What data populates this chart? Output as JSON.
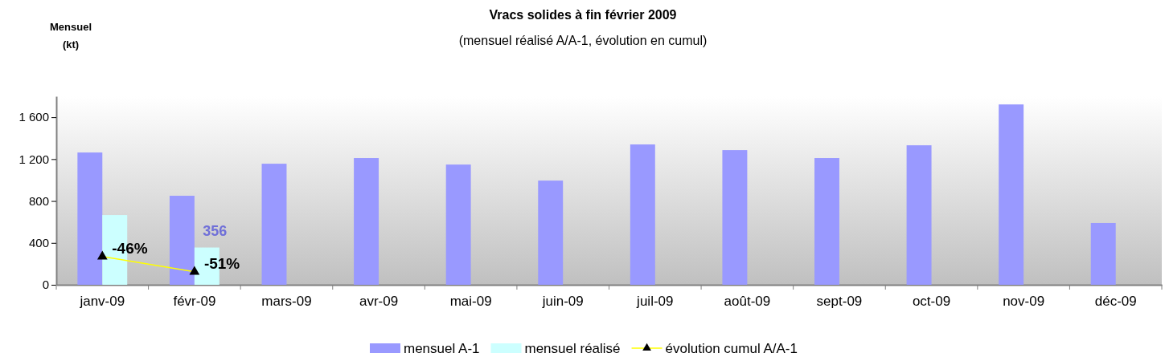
{
  "chart_data": {
    "type": "bar",
    "title": "Vracs solides à fin février 2009",
    "subtitle": "(mensuel réalisé A/A-1, évolution en cumul)",
    "ylabel": "Mensuel (kt)",
    "categories": [
      "janv-09",
      "févr-09",
      "mars-09",
      "avr-09",
      "mai-09",
      "juin-09",
      "juil-09",
      "août-09",
      "sept-09",
      "oct-09",
      "nov-09",
      "déc-09"
    ],
    "series": [
      {
        "name": "mensuel A-1",
        "color": "#9999ff",
        "values": [
          1263,
          850,
          1156,
          1210,
          1148,
          995,
          1340,
          1286,
          1210,
          1332,
          1722,
          590
        ]
      },
      {
        "name": "mensuel réalisé",
        "color": "#ccffff",
        "values": [
          666,
          356,
          null,
          null,
          null,
          null,
          null,
          null,
          null,
          null,
          null,
          null
        ],
        "value_labels": [
          null,
          "356",
          null,
          null,
          null,
          null,
          null,
          null,
          null,
          null,
          null,
          null
        ]
      },
      {
        "name": "évolution cumul A/A-1",
        "type": "line",
        "axis": "y2",
        "color": "#ffff00",
        "marker": "triangle",
        "values": [
          -46,
          -51,
          null,
          null,
          null,
          null,
          null,
          null,
          null,
          null,
          null,
          null
        ],
        "value_labels": [
          "-46%",
          "-51%",
          null,
          null,
          null,
          null,
          null,
          null,
          null,
          null,
          null,
          null
        ]
      }
    ],
    "ylim": [
      0,
      1800
    ],
    "yticks": [
      0,
      {
        "value": 400,
        "label": "400"
      },
      {
        "value": 800,
        "label": "800"
      },
      {
        "value": 1200,
        "label": "1 200"
      },
      {
        "value": 1600,
        "label": "1 600"
      }
    ],
    "y2lim": [
      -55.3,
      6.8
    ],
    "tick_labels": "xy",
    "grid": false,
    "legend": "bottom"
  }
}
